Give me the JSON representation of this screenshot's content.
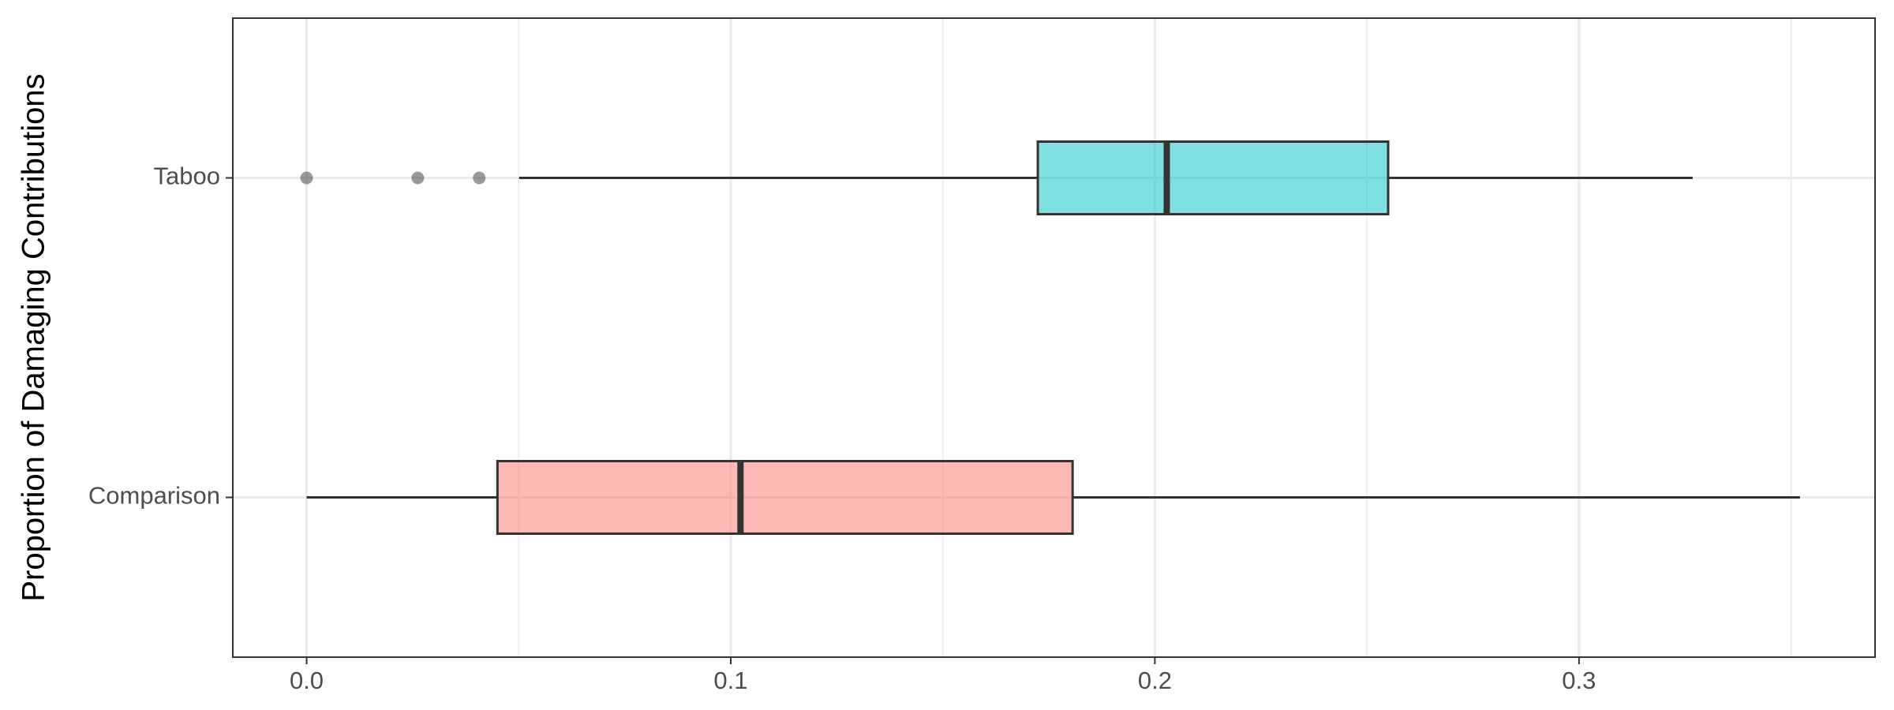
{
  "chart_data": {
    "type": "boxplot",
    "y_label": "Proportion of Damaging Contributions",
    "categories": [
      "Comparison",
      "Taboo"
    ],
    "series": [
      {
        "name": "Comparison",
        "color": "#F8766D",
        "min": 0,
        "q1": 0.045,
        "median": 0.1023,
        "q3": 0.1806,
        "max": 0.3521,
        "outliers": []
      },
      {
        "name": "Taboo",
        "color": "#00BFC4",
        "min": 0.0501,
        "q1": 0.1724,
        "median": 0.2028,
        "q3": 0.255,
        "max": 0.3268,
        "outliers": [
          0,
          0.0262,
          0.0407
        ]
      }
    ],
    "xlim": [
      -0.0174,
      0.3698
    ],
    "xticks": [
      {
        "value": 0,
        "label": "0.0"
      },
      0.1,
      0.2,
      0.3
    ],
    "minor_xticks": [
      0.05,
      0.15,
      0.25,
      0.35
    ],
    "grid": true
  }
}
